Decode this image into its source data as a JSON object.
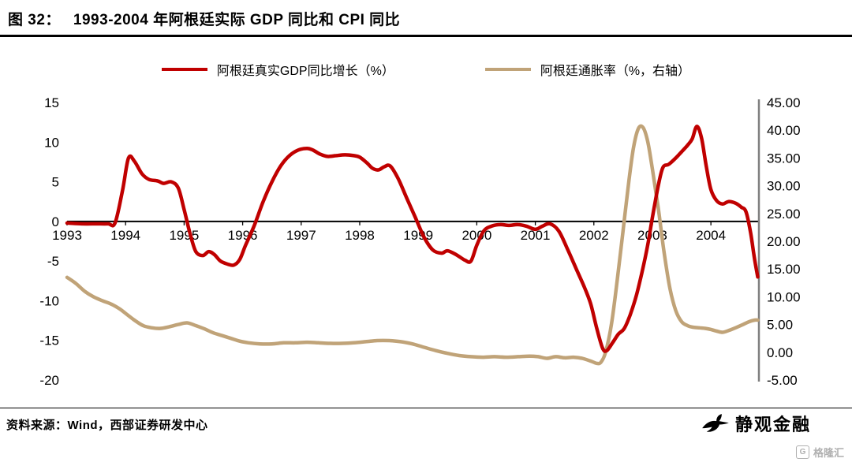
{
  "header": {
    "figure_label": "图 32：",
    "title": "1993-2004 年阿根廷实际 GDP 同比和 CPI 同比"
  },
  "legend": {
    "items": [
      {
        "label": "阿根廷真实GDP同比增长（%）",
        "color": "#c00000"
      },
      {
        "label": "阿根廷通胀率（%，右轴）",
        "color": "#c0a378"
      }
    ]
  },
  "footer": {
    "source": "资料来源：Wind，西部证券研发中心",
    "watermark": "静观金融",
    "logo": "格隆汇"
  },
  "chart_data": {
    "type": "line",
    "title": "1993-2004 年阿根廷实际 GDP 同比和 CPI 同比",
    "x_range": [
      1993,
      2004.82
    ],
    "x_ticks": [
      1993,
      1994,
      1995,
      1996,
      1997,
      1998,
      1999,
      2000,
      2001,
      2002,
      2003,
      2004
    ],
    "left_axis": {
      "min": -20,
      "max": 15,
      "ticks": [
        15,
        10,
        5,
        0,
        -5,
        -10,
        -15,
        -20
      ]
    },
    "right_axis": {
      "min": -5,
      "max": 45,
      "ticks": [
        "45.00",
        "40.00",
        "35.00",
        "30.00",
        "25.00",
        "20.00",
        "15.00",
        "10.00",
        "5.00",
        "0.00",
        "-5.00"
      ]
    },
    "grid": false,
    "legend_position": "top",
    "series": [
      {
        "name": "阿根廷真实GDP同比增长（%）",
        "axis": "left",
        "color": "#c00000",
        "points": [
          [
            1993.0,
            -0.2
          ],
          [
            1993.25,
            -0.3
          ],
          [
            1993.5,
            -0.3
          ],
          [
            1993.7,
            -0.3
          ],
          [
            1993.82,
            -0.2
          ],
          [
            1993.95,
            4.0
          ],
          [
            1994.05,
            8.0
          ],
          [
            1994.15,
            7.6
          ],
          [
            1994.28,
            6.0
          ],
          [
            1994.4,
            5.3
          ],
          [
            1994.55,
            5.1
          ],
          [
            1994.65,
            4.8
          ],
          [
            1994.78,
            5.0
          ],
          [
            1994.9,
            4.2
          ],
          [
            1995.0,
            1.5
          ],
          [
            1995.1,
            -1.5
          ],
          [
            1995.2,
            -3.8
          ],
          [
            1995.32,
            -4.3
          ],
          [
            1995.42,
            -3.8
          ],
          [
            1995.52,
            -4.2
          ],
          [
            1995.62,
            -5.0
          ],
          [
            1995.75,
            -5.4
          ],
          [
            1995.85,
            -5.5
          ],
          [
            1995.95,
            -4.8
          ],
          [
            1996.05,
            -3.0
          ],
          [
            1996.2,
            -0.5
          ],
          [
            1996.35,
            2.5
          ],
          [
            1996.5,
            5.0
          ],
          [
            1996.65,
            7.0
          ],
          [
            1996.8,
            8.3
          ],
          [
            1996.95,
            9.0
          ],
          [
            1997.1,
            9.2
          ],
          [
            1997.2,
            9.0
          ],
          [
            1997.32,
            8.5
          ],
          [
            1997.45,
            8.2
          ],
          [
            1997.6,
            8.3
          ],
          [
            1997.75,
            8.4
          ],
          [
            1997.9,
            8.3
          ],
          [
            1998.0,
            8.1
          ],
          [
            1998.12,
            7.4
          ],
          [
            1998.22,
            6.7
          ],
          [
            1998.32,
            6.5
          ],
          [
            1998.42,
            6.9
          ],
          [
            1998.52,
            7.0
          ],
          [
            1998.65,
            5.5
          ],
          [
            1998.8,
            3.0
          ],
          [
            1998.95,
            0.5
          ],
          [
            1999.1,
            -2.0
          ],
          [
            1999.25,
            -3.6
          ],
          [
            1999.4,
            -4.0
          ],
          [
            1999.5,
            -3.7
          ],
          [
            1999.65,
            -4.2
          ],
          [
            1999.8,
            -4.9
          ],
          [
            1999.9,
            -5.0
          ],
          [
            2000.0,
            -3.0
          ],
          [
            2000.12,
            -1.2
          ],
          [
            2000.25,
            -0.6
          ],
          [
            2000.4,
            -0.4
          ],
          [
            2000.55,
            -0.5
          ],
          [
            2000.7,
            -0.4
          ],
          [
            2000.85,
            -0.6
          ],
          [
            2001.0,
            -1.0
          ],
          [
            2001.12,
            -0.6
          ],
          [
            2001.25,
            -0.3
          ],
          [
            2001.4,
            -1.2
          ],
          [
            2001.55,
            -3.5
          ],
          [
            2001.7,
            -6.0
          ],
          [
            2001.85,
            -8.5
          ],
          [
            2001.95,
            -10.5
          ],
          [
            2002.05,
            -13.5
          ],
          [
            2002.15,
            -16.0
          ],
          [
            2002.22,
            -16.3
          ],
          [
            2002.32,
            -15.3
          ],
          [
            2002.42,
            -14.2
          ],
          [
            2002.52,
            -13.5
          ],
          [
            2002.62,
            -11.8
          ],
          [
            2002.72,
            -9.5
          ],
          [
            2002.82,
            -6.5
          ],
          [
            2002.92,
            -3.0
          ],
          [
            2003.0,
            0.5
          ],
          [
            2003.1,
            4.5
          ],
          [
            2003.18,
            6.8
          ],
          [
            2003.28,
            7.2
          ],
          [
            2003.4,
            8.0
          ],
          [
            2003.5,
            8.8
          ],
          [
            2003.6,
            9.6
          ],
          [
            2003.68,
            10.4
          ],
          [
            2003.76,
            12.0
          ],
          [
            2003.84,
            10.5
          ],
          [
            2003.92,
            7.0
          ],
          [
            2004.0,
            4.0
          ],
          [
            2004.1,
            2.6
          ],
          [
            2004.2,
            2.2
          ],
          [
            2004.3,
            2.5
          ],
          [
            2004.42,
            2.3
          ],
          [
            2004.52,
            1.8
          ],
          [
            2004.6,
            1.2
          ],
          [
            2004.68,
            -1.5
          ],
          [
            2004.74,
            -4.5
          ],
          [
            2004.8,
            -7.0
          ]
        ]
      },
      {
        "name": "阿根廷通胀率（%，右轴）",
        "axis": "right",
        "color": "#c0a378",
        "points": [
          [
            1993.0,
            13.5
          ],
          [
            1993.15,
            12.4
          ],
          [
            1993.3,
            11.0
          ],
          [
            1993.45,
            10.0
          ],
          [
            1993.6,
            9.3
          ],
          [
            1993.75,
            8.7
          ],
          [
            1993.9,
            7.8
          ],
          [
            1994.0,
            7.0
          ],
          [
            1994.15,
            5.8
          ],
          [
            1994.3,
            4.8
          ],
          [
            1994.45,
            4.4
          ],
          [
            1994.6,
            4.3
          ],
          [
            1994.75,
            4.6
          ],
          [
            1994.9,
            5.0
          ],
          [
            1995.05,
            5.3
          ],
          [
            1995.2,
            4.8
          ],
          [
            1995.35,
            4.2
          ],
          [
            1995.5,
            3.5
          ],
          [
            1995.65,
            3.0
          ],
          [
            1995.8,
            2.5
          ],
          [
            1995.95,
            2.0
          ],
          [
            1996.1,
            1.7
          ],
          [
            1996.3,
            1.5
          ],
          [
            1996.5,
            1.5
          ],
          [
            1996.7,
            1.7
          ],
          [
            1996.9,
            1.7
          ],
          [
            1997.1,
            1.8
          ],
          [
            1997.3,
            1.7
          ],
          [
            1997.5,
            1.6
          ],
          [
            1997.7,
            1.6
          ],
          [
            1997.9,
            1.7
          ],
          [
            1998.1,
            1.9
          ],
          [
            1998.3,
            2.1
          ],
          [
            1998.5,
            2.1
          ],
          [
            1998.7,
            1.9
          ],
          [
            1998.9,
            1.5
          ],
          [
            1999.1,
            0.9
          ],
          [
            1999.3,
            0.3
          ],
          [
            1999.5,
            -0.2
          ],
          [
            1999.7,
            -0.6
          ],
          [
            1999.9,
            -0.8
          ],
          [
            2000.1,
            -0.9
          ],
          [
            2000.3,
            -0.8
          ],
          [
            2000.5,
            -0.9
          ],
          [
            2000.7,
            -0.8
          ],
          [
            2000.9,
            -0.7
          ],
          [
            2001.05,
            -0.8
          ],
          [
            2001.2,
            -1.1
          ],
          [
            2001.35,
            -0.8
          ],
          [
            2001.5,
            -1.0
          ],
          [
            2001.65,
            -0.9
          ],
          [
            2001.8,
            -1.1
          ],
          [
            2001.95,
            -1.6
          ],
          [
            2002.05,
            -2.0
          ],
          [
            2002.12,
            -1.8
          ],
          [
            2002.2,
            0.0
          ],
          [
            2002.3,
            5.0
          ],
          [
            2002.4,
            13.0
          ],
          [
            2002.5,
            22.0
          ],
          [
            2002.6,
            31.0
          ],
          [
            2002.68,
            37.0
          ],
          [
            2002.76,
            40.3
          ],
          [
            2002.84,
            40.5
          ],
          [
            2002.92,
            38.0
          ],
          [
            2003.0,
            33.0
          ],
          [
            2003.1,
            26.0
          ],
          [
            2003.2,
            18.0
          ],
          [
            2003.3,
            11.5
          ],
          [
            2003.4,
            7.5
          ],
          [
            2003.5,
            5.5
          ],
          [
            2003.6,
            4.8
          ],
          [
            2003.7,
            4.5
          ],
          [
            2003.8,
            4.4
          ],
          [
            2003.9,
            4.3
          ],
          [
            2004.0,
            4.1
          ],
          [
            2004.1,
            3.8
          ],
          [
            2004.2,
            3.6
          ],
          [
            2004.3,
            3.9
          ],
          [
            2004.42,
            4.4
          ],
          [
            2004.55,
            5.0
          ],
          [
            2004.65,
            5.5
          ],
          [
            2004.75,
            5.8
          ],
          [
            2004.8,
            5.8
          ]
        ]
      }
    ]
  }
}
